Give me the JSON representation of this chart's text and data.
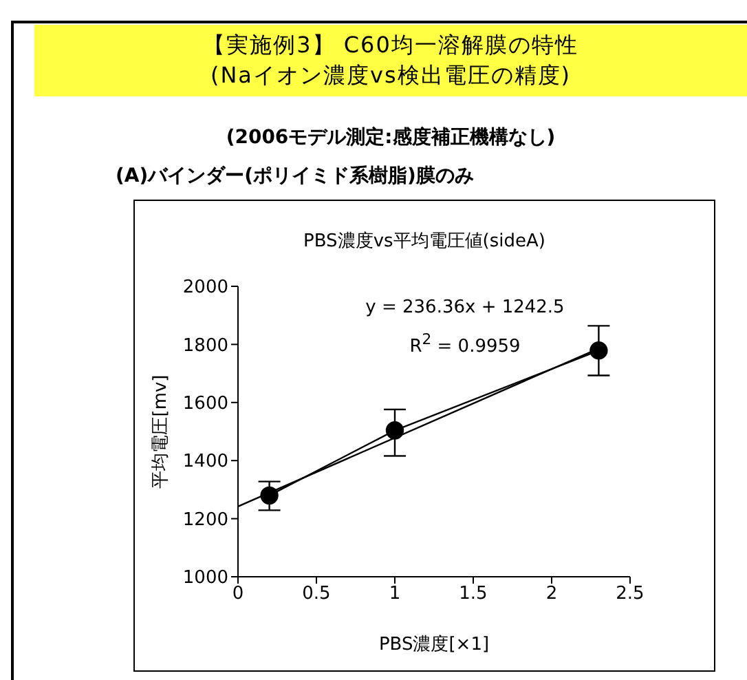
{
  "chart_data": {
    "type": "line",
    "title": "【実施例3】 C60均一溶解膜の特性\n(Naイオン濃度vs検出電圧の精度)",
    "subtitle": "(2006モデル測定:感度補正機構なし)",
    "annotations": [
      "(A)バインダー(ポリイミド系樹脂)膜のみ",
      "PBS濃度vs平均電圧値(sideA)",
      "y = 236.36x + 1242.5",
      "R$^{2}$ = 0.9959"
    ],
    "xlabel": "PBS濃度[×1]",
    "ylabel": "平均電圧[mv]",
    "xlim": [
      0,
      2.5
    ],
    "xticks": [
      0,
      0.5,
      1,
      1.5,
      2,
      2.5
    ],
    "ylim": [
      1000,
      2000
    ],
    "yticks": [
      1000,
      1200,
      1400,
      1600,
      1800,
      2000
    ],
    "series": [
      {
        "color": "#000000",
        "marker": "circle",
        "x": [
          0.2,
          1,
          2.3
        ],
        "values": [
          1280,
          1504,
          1779
        ],
        "errors": [
          [
            1229,
            1328
          ],
          [
            1416,
            1576
          ],
          [
            1693,
            1864
          ]
        ]
      },
      {
        "color": "#000000",
        "marker": "none",
        "x": [
          0,
          2.3
        ],
        "values": [
          1242,
          1786
        ]
      }
    ]
  }
}
